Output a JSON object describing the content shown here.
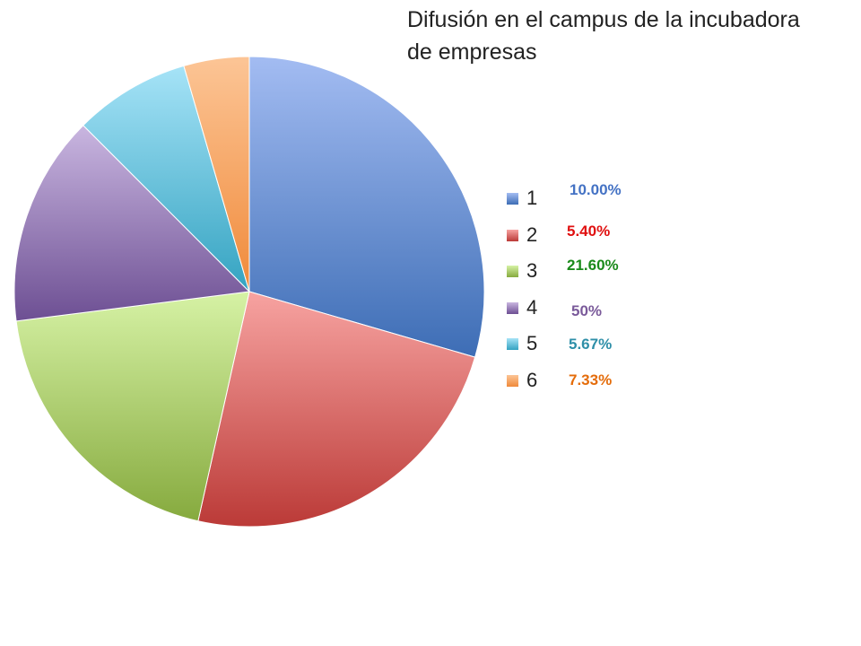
{
  "chart_data": {
    "type": "pie",
    "title": "Difusión en el campus de la incubadora de empresas",
    "title_lines": [
      "Difusión en el campus de la incubadora",
      "de empresas"
    ],
    "start_angle_deg": 0,
    "legend_position": "right",
    "slices": [
      {
        "label": "1",
        "value": 29.5,
        "color": "#4f81bd",
        "light": "#a3bcf2",
        "dark": "#3d6db5",
        "annotation": "10.00%",
        "annotation_color": "#4472c4"
      },
      {
        "label": "2",
        "value": 24.0,
        "color": "#c0504d",
        "light": "#f7a3a1",
        "dark": "#bb3a37",
        "annotation": "5.40%",
        "annotation_color": "#e01010"
      },
      {
        "label": "3",
        "value": 19.5,
        "color": "#9bbb59",
        "light": "#d6f2a5",
        "dark": "#86aa3e",
        "annotation": "21.60%",
        "annotation_color": "#1a8a1a"
      },
      {
        "label": "4",
        "value": 14.5,
        "color": "#8064a2",
        "light": "#c9b6e0",
        "dark": "#6d4f93",
        "annotation": "50%",
        "annotation_color": "#7a5a9a"
      },
      {
        "label": "5",
        "value": 8.0,
        "color": "#4bacc6",
        "light": "#a6e3f7",
        "dark": "#34a3c1",
        "annotation": "5.67%",
        "annotation_color": "#2e8fa8"
      },
      {
        "label": "6",
        "value": 4.5,
        "color": "#f79646",
        "light": "#fcc596",
        "dark": "#f08a3a",
        "annotation": "7.33%",
        "annotation_color": "#e46c0a"
      }
    ]
  }
}
